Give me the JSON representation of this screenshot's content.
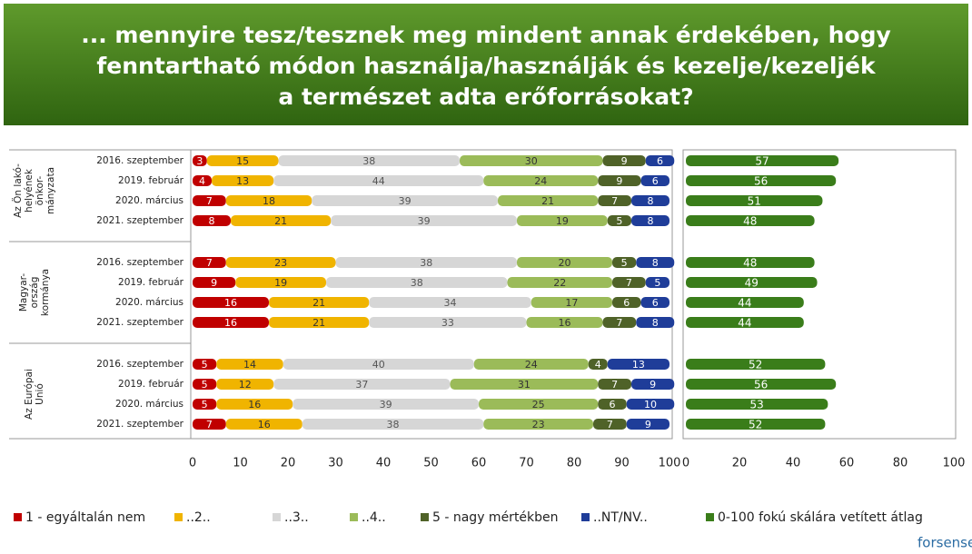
{
  "chart_data": [
    {
      "type": "stacked-bar",
      "title": [
        "... mennyire tesz/tesznek meg mindent annak érdekében, hogy",
        "fenntartható módon használja/használják és kezelje/kezeljék",
        "a természet adta erőforrásokat?"
      ],
      "groups": [
        {
          "label": [
            "Az Ön lakó-",
            "helyének",
            "önkor-",
            "mányzata"
          ],
          "categories": [
            "2016. szeptember",
            "2019. február",
            "2020. március",
            "2021. szeptember"
          ]
        },
        {
          "label": [
            "Magyar-",
            "ország",
            "kormánya"
          ],
          "categories": [
            "2016. szeptember",
            "2019. február",
            "2020. március",
            "2021. szeptember"
          ]
        },
        {
          "label": [
            "Az Európai",
            "Unió"
          ],
          "categories": [
            "2016. szeptember",
            "2019. február",
            "2020. március",
            "2021. szeptember"
          ]
        }
      ],
      "series": [
        {
          "name": "1 - egyáltalán nem",
          "color": "#c00000",
          "values": [
            3,
            4,
            7,
            8,
            7,
            9,
            16,
            16,
            5,
            5,
            5,
            7
          ]
        },
        {
          "name": "..2..",
          "color": "#f0b400",
          "values": [
            15,
            13,
            18,
            21,
            23,
            19,
            21,
            21,
            14,
            12,
            16,
            16
          ]
        },
        {
          "name": "..3..",
          "color": "#d6d6d6",
          "values": [
            38,
            44,
            39,
            39,
            38,
            38,
            34,
            33,
            40,
            37,
            39,
            38
          ]
        },
        {
          "name": "..4..",
          "color": "#9bbb59",
          "values": [
            30,
            24,
            21,
            19,
            20,
            22,
            17,
            16,
            24,
            31,
            25,
            23
          ]
        },
        {
          "name": "5 - nagy mértékben",
          "color": "#4f6228",
          "values": [
            9,
            9,
            7,
            5,
            5,
            7,
            6,
            7,
            4,
            7,
            6,
            7
          ]
        },
        {
          "name": "..NT/NV..",
          "color": "#1f3d99",
          "values": [
            6,
            6,
            8,
            8,
            8,
            5,
            6,
            8,
            13,
            9,
            10,
            9
          ]
        }
      ],
      "xlim": [
        0,
        100
      ],
      "xticks": [
        0,
        10,
        20,
        30,
        40,
        50,
        60,
        70,
        80,
        90,
        100
      ]
    },
    {
      "type": "bar",
      "series": [
        {
          "name": "0-100 fokú skálára vetített átlag",
          "color": "#3a7d1a",
          "values": [
            57,
            56,
            51,
            48,
            48,
            49,
            44,
            44,
            52,
            56,
            53,
            52
          ]
        }
      ],
      "xlim": [
        0,
        100
      ],
      "xticks": [
        0,
        20,
        40,
        60,
        80,
        100
      ]
    }
  ],
  "logo": "forsense"
}
